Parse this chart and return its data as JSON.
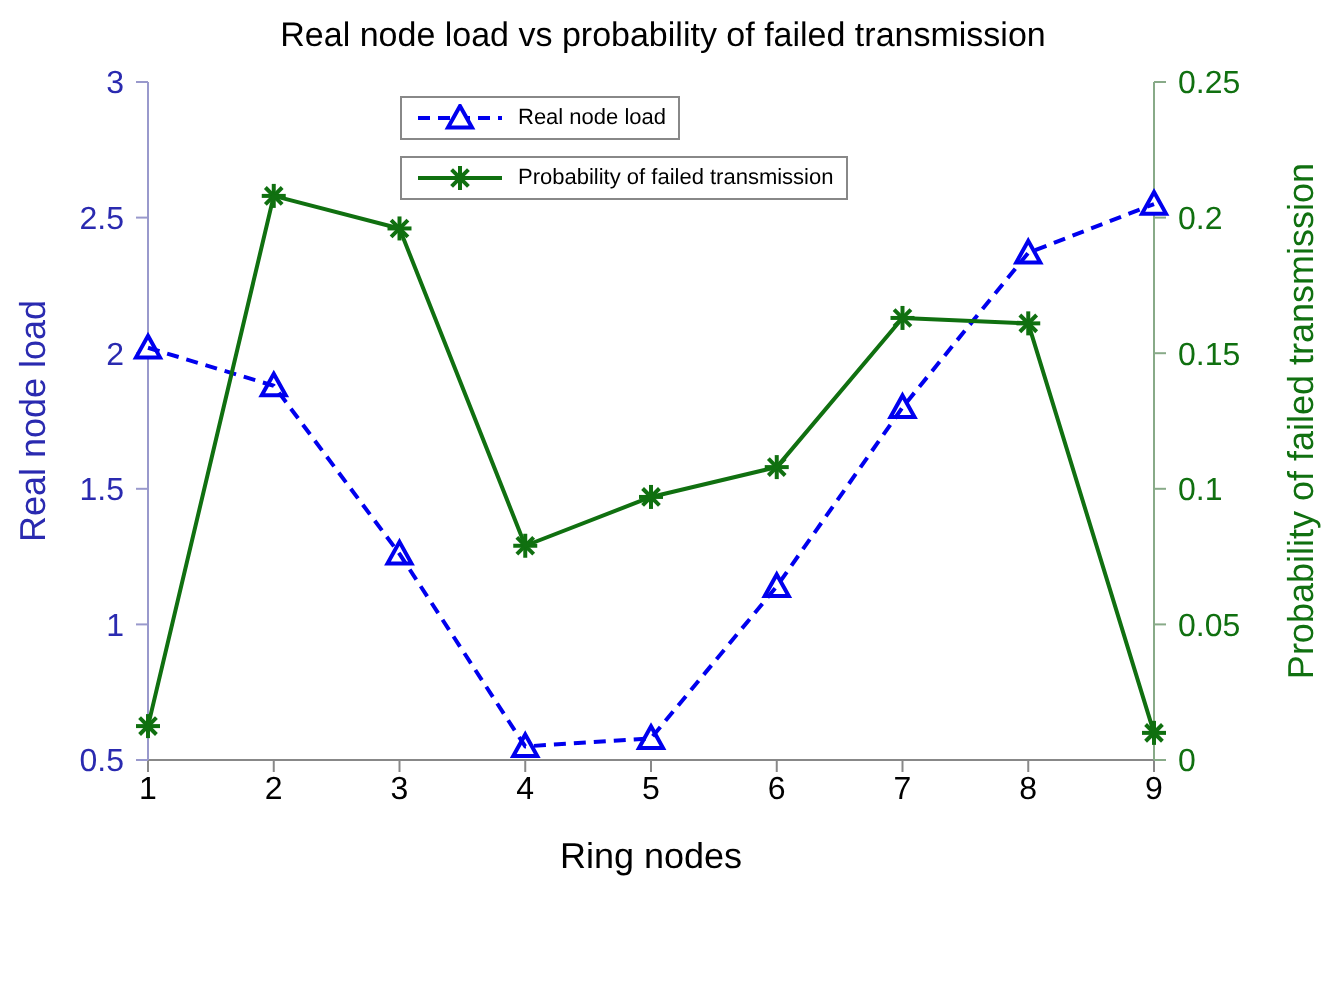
{
  "chart_data": {
    "type": "line",
    "title": "Real node load vs probability of failed transmission",
    "xlabel": "Ring nodes",
    "ylabel": "Real node load",
    "y2label": "Probability of failed transmission",
    "x": [
      1,
      2,
      3,
      4,
      5,
      6,
      7,
      8,
      9
    ],
    "series": [
      {
        "name": "Real node load",
        "color": "#0000ee",
        "marker": "triangle",
        "line_style": "dashed",
        "values": [
          2.02,
          1.88,
          1.26,
          0.55,
          0.58,
          1.14,
          1.8,
          2.37,
          2.55
        ]
      },
      {
        "name": "Probability of failed transmission",
        "color": "#107010",
        "marker": "cross",
        "line_style": "solid",
        "axis": "y2",
        "values": [
          0.0125,
          0.208,
          0.196,
          0.079,
          0.097,
          0.108,
          0.163,
          0.161,
          0.01
        ]
      }
    ],
    "xlim": [
      1,
      9
    ],
    "xticks": [
      1,
      2,
      3,
      4,
      5,
      6,
      7,
      8,
      9
    ],
    "ylim": [
      0.5,
      3
    ],
    "yticks": [
      0.5,
      1,
      1.5,
      2,
      2.5,
      3
    ],
    "y2lim": [
      0,
      0.25
    ],
    "y2ticks": [
      0,
      0.05,
      0.1,
      0.15,
      0.2,
      0.25
    ],
    "grid": false,
    "legend": "top"
  }
}
